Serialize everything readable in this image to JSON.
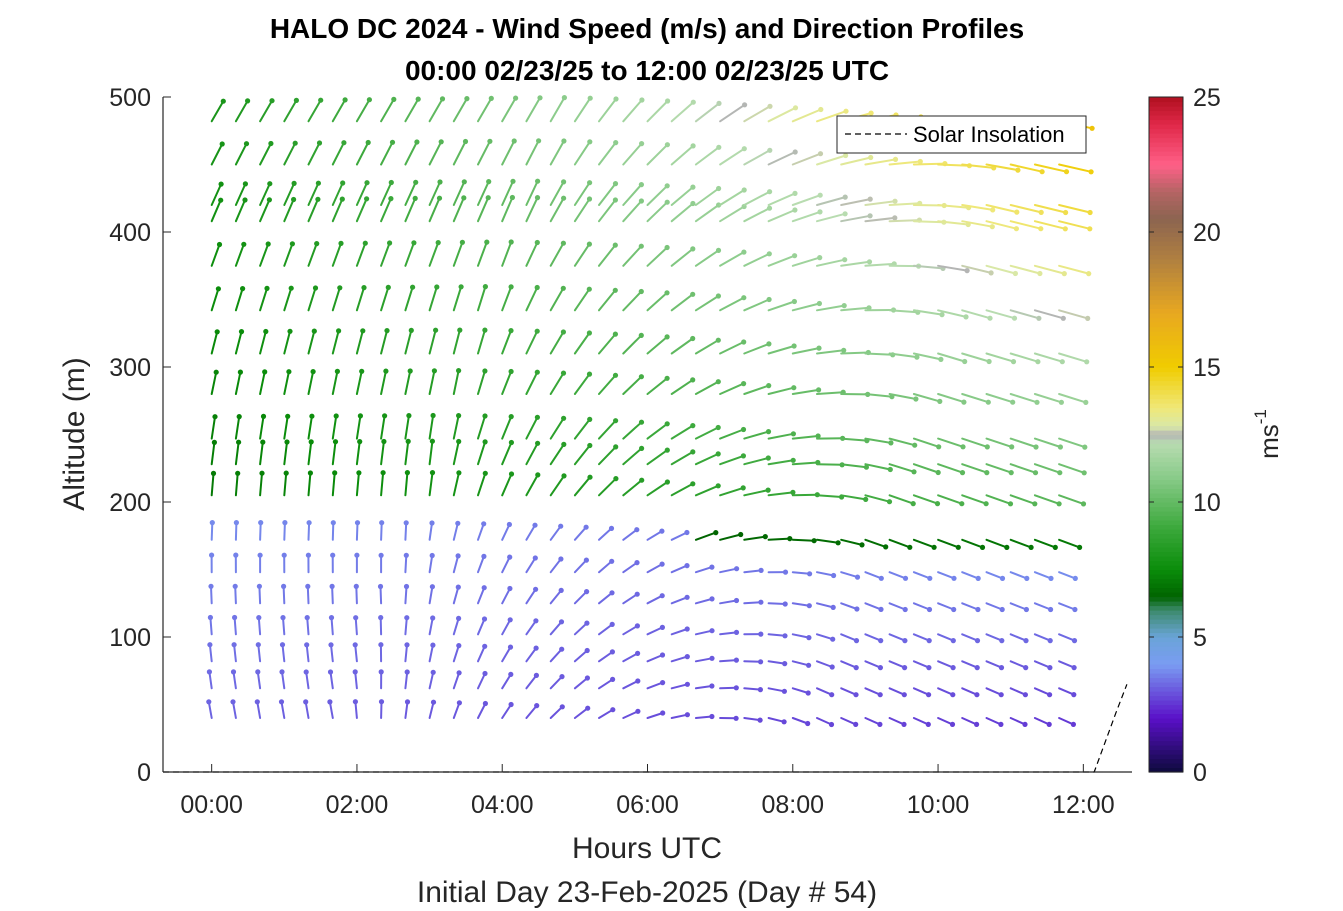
{
  "chart_data": {
    "type": "quiver",
    "title": "HALO DC 2024 - Wind Speed (m/s) and Direction Profiles",
    "subtitle": "00:00 02/23/25 to 12:00 02/23/25  UTC",
    "xlabel": "Hours UTC",
    "xlabel2": "Initial Day 23-Feb-2025 (Day # 54)",
    "ylabel": "Altitude (m)",
    "xlim": [
      -0.67,
      12.67
    ],
    "ylim": [
      0,
      500
    ],
    "x_ticks": [
      {
        "value": 0,
        "label": "00:00"
      },
      {
        "value": 2,
        "label": "02:00"
      },
      {
        "value": 4,
        "label": "04:00"
      },
      {
        "value": 6,
        "label": "06:00"
      },
      {
        "value": 8,
        "label": "08:00"
      },
      {
        "value": 10,
        "label": "10:00"
      },
      {
        "value": 12,
        "label": "12:00"
      }
    ],
    "y_ticks": [
      {
        "value": 0,
        "label": "0"
      },
      {
        "value": 100,
        "label": "100"
      },
      {
        "value": 200,
        "label": "200"
      },
      {
        "value": 300,
        "label": "300"
      },
      {
        "value": 400,
        "label": "400"
      },
      {
        "value": 500,
        "label": "500"
      }
    ],
    "colorbar": {
      "label": "ms",
      "label_superscript": "-1",
      "range": [
        0,
        25
      ],
      "ticks": [
        {
          "value": 0,
          "label": "0"
        },
        {
          "value": 5,
          "label": "5"
        },
        {
          "value": 10,
          "label": "10"
        },
        {
          "value": 15,
          "label": "15"
        },
        {
          "value": 20,
          "label": "20"
        },
        {
          "value": 25,
          "label": "25"
        }
      ],
      "stops": [
        {
          "v": 0,
          "c": "#0d0a3c"
        },
        {
          "v": 2,
          "c": "#5a10c8"
        },
        {
          "v": 4,
          "c": "#7a9cf2"
        },
        {
          "v": 5,
          "c": "#6aa4d8"
        },
        {
          "v": 6,
          "c": "#3c8a6c"
        },
        {
          "v": 6.5,
          "c": "#006400"
        },
        {
          "v": 7.5,
          "c": "#0a8c0a"
        },
        {
          "v": 9,
          "c": "#3aa83a"
        },
        {
          "v": 11,
          "c": "#8ccc8c"
        },
        {
          "v": 12.2,
          "c": "#b8dcb0"
        },
        {
          "v": 12.5,
          "c": "#b4b4b4"
        },
        {
          "v": 12.8,
          "c": "#d8e8a8"
        },
        {
          "v": 13.5,
          "c": "#f0e878"
        },
        {
          "v": 15,
          "c": "#f0cc00"
        },
        {
          "v": 17,
          "c": "#e8a820"
        },
        {
          "v": 19,
          "c": "#b08040"
        },
        {
          "v": 20.5,
          "c": "#8c6450"
        },
        {
          "v": 21.5,
          "c": "#b46464"
        },
        {
          "v": 22.5,
          "c": "#ff6088"
        },
        {
          "v": 24,
          "c": "#e02848"
        },
        {
          "v": 25,
          "c": "#b01020"
        }
      ]
    },
    "levels": [
      40,
      62,
      82,
      102,
      125,
      148,
      172,
      205,
      228,
      247,
      280,
      310,
      342,
      375,
      408,
      420,
      450,
      482
    ],
    "times_hours": [
      0,
      0.333,
      0.667,
      1,
      1.333,
      1.667,
      2,
      2.333,
      2.667,
      3,
      3.333,
      3.667,
      4,
      4.333,
      4.667,
      5,
      5.333,
      5.667,
      6,
      6.333,
      6.667,
      7,
      7.333,
      7.667,
      8,
      8.333,
      8.667,
      9,
      9.333,
      9.667,
      10,
      10.333,
      10.667,
      11,
      11.333,
      11.667
    ],
    "wind_field_description": "Wind speed (color) and direction (arrow orientation) at each time/level; light southerly winds in lower levels early, veering to strong westerly/northwesterly aloft later.",
    "legend": [
      {
        "label": "Solar Insolation",
        "style": "dashed",
        "color": "#000000"
      }
    ],
    "solar_insolation": {
      "x": [
        -0.67,
        12.15,
        12.3,
        12.45,
        12.6
      ],
      "y": [
        0,
        0,
        22,
        44,
        65
      ]
    }
  }
}
